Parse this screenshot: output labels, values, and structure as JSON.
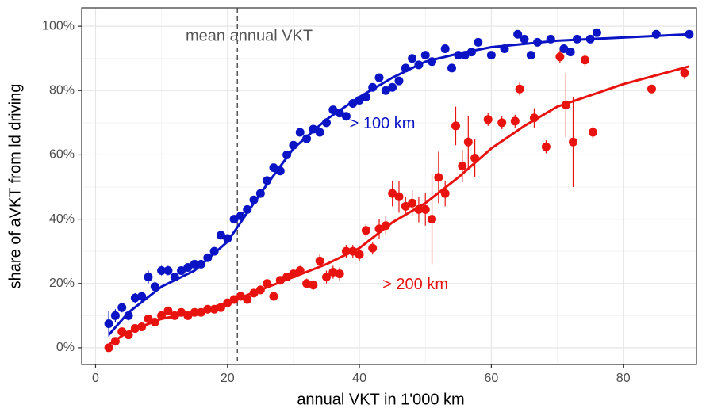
{
  "chart_data": {
    "type": "scatter",
    "xlabel": "annual VKT in 1'000 km",
    "ylabel": "share of aVKT from ld driving",
    "xlim": [
      -2.1,
      91.1
    ],
    "ylim": [
      -5.2,
      105.7
    ],
    "xticks": [
      0,
      20,
      40,
      60,
      80
    ],
    "yticks": [
      {
        "value": 0,
        "label": "0%"
      },
      {
        "value": 20,
        "label": "20%"
      },
      {
        "value": 40,
        "label": "40%"
      },
      {
        "value": 60,
        "label": "60%"
      },
      {
        "value": 80,
        "label": "80%"
      },
      {
        "value": 100,
        "label": "100%"
      }
    ],
    "grid": true,
    "vline": {
      "value": 21.5,
      "label": "mean annual VKT"
    },
    "series": [
      {
        "name": "> 100 km",
        "color": "#0a14c4",
        "x": [
          2,
          3,
          4,
          5,
          6,
          7,
          8,
          9,
          10,
          11,
          12,
          13,
          14,
          15,
          16,
          17,
          18,
          19,
          20,
          21,
          22,
          23,
          24,
          25,
          26,
          27,
          28,
          29,
          30,
          31,
          32,
          33,
          34,
          35,
          36,
          37,
          38,
          39,
          40,
          41,
          42,
          43,
          44,
          45,
          46,
          47,
          48,
          49,
          50,
          51,
          53,
          54,
          55,
          56,
          57,
          58,
          60,
          62,
          64,
          65,
          66,
          67,
          69,
          71,
          72,
          73,
          75,
          76,
          85,
          90
        ],
        "values": [
          7.5,
          10,
          12.5,
          10,
          15.5,
          16,
          22,
          19,
          24,
          24,
          22,
          24,
          25,
          26,
          26,
          28,
          30,
          35,
          34,
          40,
          41,
          43,
          46,
          48,
          52,
          56,
          55,
          60,
          63,
          67,
          65,
          68,
          67,
          70,
          74,
          73,
          72,
          76,
          77,
          78,
          81,
          84,
          80,
          81,
          83,
          87,
          90,
          88,
          91,
          89,
          93,
          87,
          91,
          91,
          92,
          95,
          91,
          93,
          97.5,
          96,
          91,
          95,
          96,
          93,
          92,
          96,
          96,
          98,
          97.5,
          97.5
        ],
        "errors": [
          4,
          2,
          1.5,
          1.5,
          1.5,
          1.5,
          2,
          1.5,
          1.5,
          1.5,
          1,
          1,
          1,
          1,
          1,
          1,
          1,
          1,
          1,
          1,
          1,
          1,
          1,
          1,
          1,
          1,
          1,
          1,
          1,
          1,
          1,
          1,
          1,
          1,
          1,
          1,
          1,
          1,
          1,
          1,
          1,
          1,
          1,
          1,
          1,
          1,
          1,
          1,
          1,
          1,
          1,
          1,
          1,
          1,
          1,
          1,
          1,
          1,
          1,
          1,
          1,
          1,
          1,
          1,
          1,
          1,
          1,
          1,
          1,
          1
        ],
        "fit": {
          "x": [
            2,
            5,
            10,
            15,
            20,
            25,
            30,
            35,
            40,
            45,
            50,
            55,
            60,
            70,
            80,
            90
          ],
          "values": [
            4,
            11,
            19,
            24,
            33,
            48,
            62,
            71,
            78,
            84,
            89,
            91.5,
            93.5,
            95.5,
            96.5,
            97.5
          ]
        }
      },
      {
        "name": "> 200 km",
        "color": "#e8130f",
        "x": [
          2,
          3,
          4,
          5,
          6,
          7,
          8,
          9,
          10,
          11,
          12,
          13,
          14,
          15,
          16,
          17,
          18,
          19,
          20,
          21,
          22,
          23,
          24,
          25,
          26,
          27,
          28,
          29,
          30,
          31,
          32,
          33,
          34,
          35,
          36,
          37,
          38,
          39,
          40,
          41,
          42,
          43,
          44,
          45,
          46,
          47,
          48,
          49,
          50,
          51,
          52,
          53,
          54.6,
          55.6,
          56.5,
          57.5,
          59.5,
          61.6,
          63.6,
          64.3,
          66.5,
          68.3,
          70.4,
          71.3,
          72.4,
          74.2,
          75.4,
          84.3,
          89.3
        ],
        "values": [
          0,
          2,
          5,
          4,
          6,
          6.5,
          9,
          8,
          10,
          11.5,
          10,
          11,
          10,
          11,
          11,
          12,
          12,
          12.5,
          14,
          15,
          16,
          15,
          17,
          18,
          20,
          16,
          21,
          22,
          23,
          24,
          20,
          19.5,
          27,
          22,
          23.5,
          23,
          30,
          30,
          29,
          36.5,
          31,
          37,
          38,
          48,
          47,
          44,
          45,
          43,
          43,
          40,
          53,
          48,
          69,
          56.5,
          64,
          59,
          71,
          70,
          70.5,
          80.5,
          71.5,
          62.5,
          90.5,
          75.5,
          64,
          89.5,
          67,
          80.5,
          85.5
        ],
        "errors": [
          1,
          1,
          1,
          1,
          1,
          1,
          1,
          1,
          1,
          1,
          1,
          1,
          1,
          1,
          1,
          1,
          1,
          1,
          1,
          1,
          1,
          1,
          1,
          1,
          1,
          1,
          1,
          1,
          1,
          1.5,
          1.5,
          1.5,
          2,
          2,
          2,
          2,
          2,
          2,
          2,
          2,
          2,
          3,
          3,
          4,
          5,
          3,
          4,
          4,
          5,
          14,
          8,
          4,
          6,
          5,
          8,
          6,
          2,
          2,
          2,
          2,
          3,
          2,
          2,
          10,
          14,
          2,
          2,
          1,
          2
        ],
        "fit": {
          "x": [
            2,
            5,
            10,
            15,
            20,
            25,
            30,
            35,
            40,
            45,
            50,
            55,
            60,
            65,
            70,
            80,
            90
          ],
          "values": [
            1,
            5,
            9,
            11,
            14,
            18,
            22,
            26,
            31,
            39,
            45,
            53,
            62,
            69,
            75,
            82,
            87.5
          ]
        }
      }
    ]
  }
}
